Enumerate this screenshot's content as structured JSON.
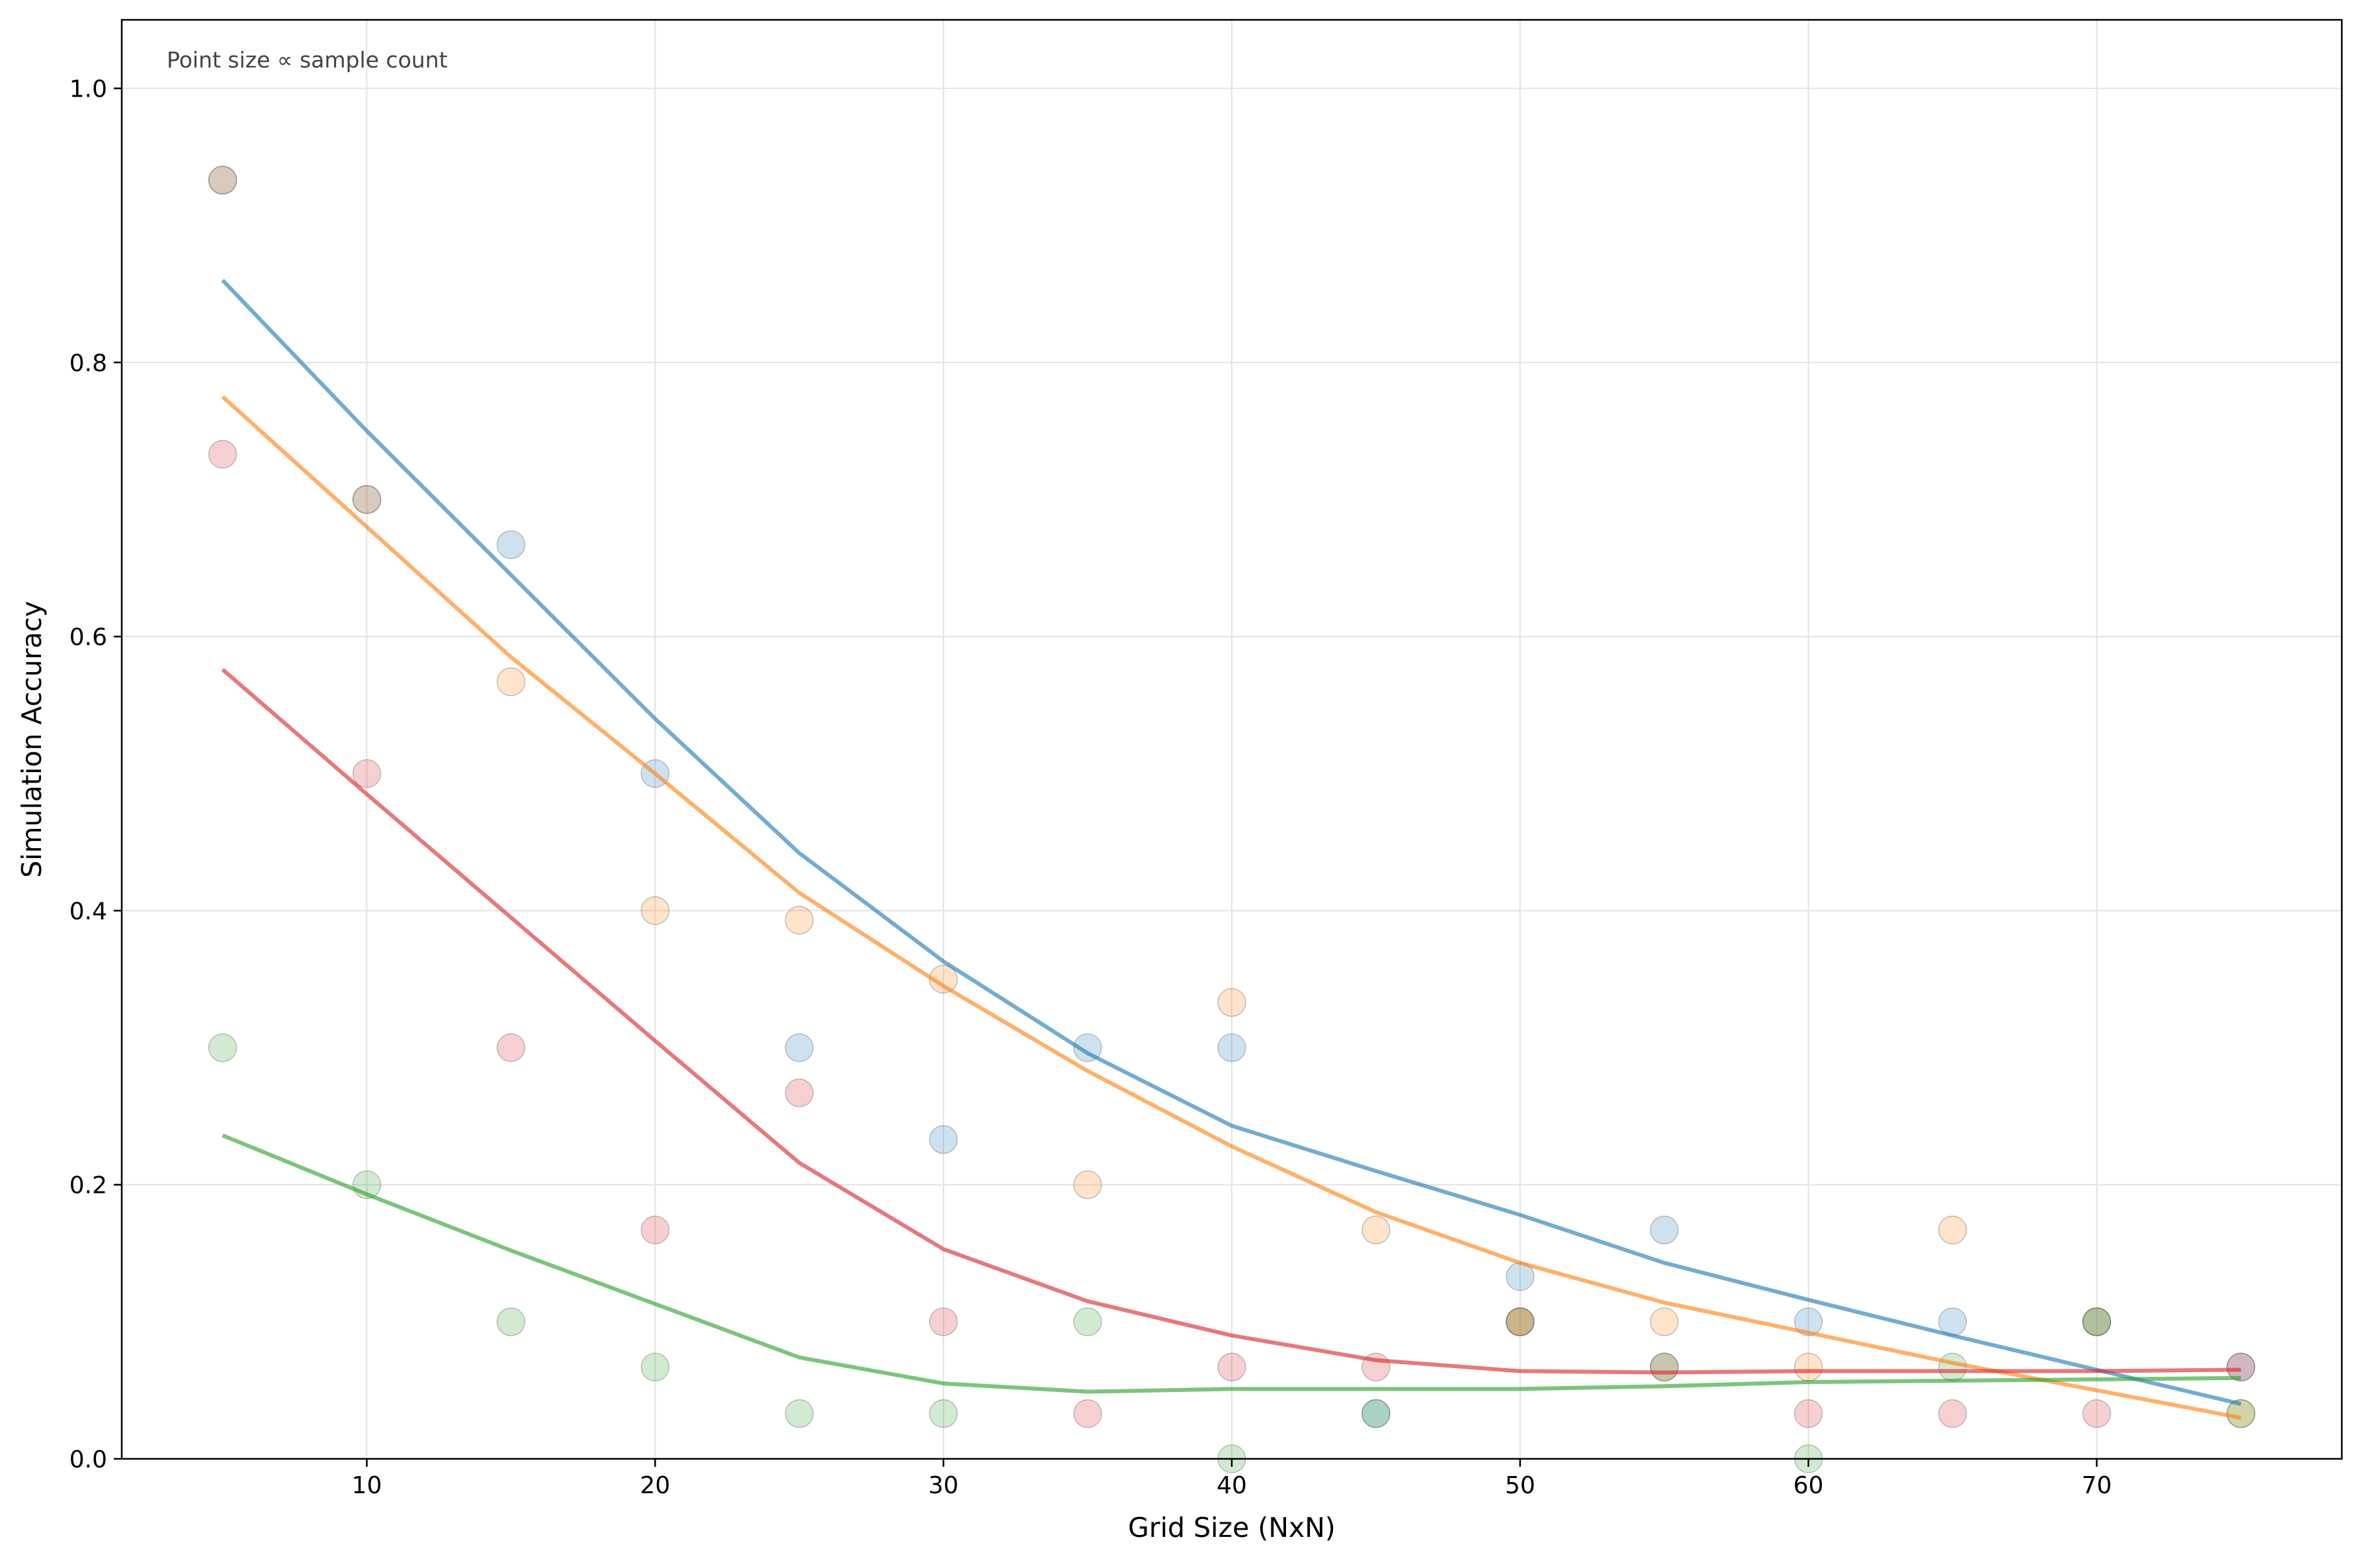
{
  "chart_data": {
    "type": "scatter",
    "title": "",
    "xlabel": "Grid Size (NxN)",
    "ylabel": "Simulation Accuracy",
    "annotation": "Point size ∝ sample count",
    "xlim": [
      1.5,
      78.5
    ],
    "ylim": [
      0.0,
      1.05
    ],
    "x_ticks": [
      10,
      20,
      30,
      40,
      50,
      60,
      70
    ],
    "y_ticks": [
      0.0,
      0.2,
      0.4,
      0.6,
      0.8,
      1.0
    ],
    "x_tick_labels": [
      "10",
      "20",
      "30",
      "40",
      "50",
      "60",
      "70"
    ],
    "y_tick_labels": [
      "0.0",
      "0.2",
      "0.4",
      "0.6",
      "0.8",
      "1.0"
    ],
    "grid": true,
    "series": [
      {
        "color": "#1f77b4",
        "points_x": [
          5,
          10,
          15,
          20,
          25,
          30,
          35,
          40,
          45,
          50,
          55,
          60,
          65,
          70,
          75
        ],
        "points_y": [
          0.933,
          0.7,
          0.667,
          0.5,
          0.3,
          0.233,
          0.3,
          0.3,
          0.033,
          0.133,
          0.167,
          0.1,
          0.1,
          0.1,
          0.067
        ],
        "trend_x": [
          5,
          10,
          15,
          20,
          25,
          30,
          35,
          40,
          45,
          50,
          55,
          60,
          65,
          70,
          75
        ],
        "trend_y": [
          0.86,
          0.75,
          0.645,
          0.54,
          0.442,
          0.363,
          0.296,
          0.243,
          0.21,
          0.178,
          0.143,
          0.116,
          0.09,
          0.065,
          0.04
        ]
      },
      {
        "color": "#ff7f0e",
        "points_x": [
          5,
          10,
          15,
          20,
          25,
          30,
          35,
          40,
          45,
          50,
          55,
          60,
          65,
          70,
          75
        ],
        "points_y": [
          0.933,
          0.7,
          0.567,
          0.4,
          0.393,
          0.35,
          0.2,
          0.333,
          0.167,
          0.1,
          0.1,
          0.067,
          0.167,
          0.1,
          0.033
        ],
        "trend_x": [
          5,
          10,
          15,
          20,
          25,
          30,
          35,
          40,
          45,
          50,
          55,
          60,
          65,
          70,
          75
        ],
        "trend_y": [
          0.775,
          0.68,
          0.585,
          0.5,
          0.413,
          0.345,
          0.283,
          0.228,
          0.18,
          0.143,
          0.114,
          0.092,
          0.07,
          0.05,
          0.03
        ]
      },
      {
        "color": "#d62728",
        "points_x": [
          5,
          10,
          15,
          20,
          25,
          30,
          35,
          40,
          45,
          50,
          55,
          60,
          65,
          70,
          75
        ],
        "points_y": [
          0.733,
          0.5,
          0.3,
          0.167,
          0.267,
          0.1,
          0.033,
          0.067,
          0.067,
          0.1,
          0.067,
          0.033,
          0.033,
          0.033,
          0.067
        ],
        "trend_x": [
          5,
          10,
          15,
          20,
          25,
          30,
          35,
          40,
          45,
          50,
          55,
          60,
          65,
          70,
          75
        ],
        "trend_y": [
          0.576,
          0.485,
          0.395,
          0.305,
          0.216,
          0.153,
          0.115,
          0.09,
          0.072,
          0.064,
          0.063,
          0.064,
          0.064,
          0.064,
          0.065
        ]
      },
      {
        "color": "#2ca02c",
        "points_x": [
          5,
          10,
          15,
          20,
          25,
          30,
          35,
          40,
          45,
          50,
          55,
          60,
          65,
          70,
          75
        ],
        "points_y": [
          0.3,
          0.2,
          0.1,
          0.067,
          0.033,
          0.033,
          0.1,
          0.0,
          0.033,
          0.1,
          0.067,
          0.0,
          0.067,
          0.1,
          0.033
        ],
        "trend_x": [
          5,
          10,
          15,
          20,
          25,
          30,
          35,
          40,
          45,
          50,
          55,
          60,
          65,
          70,
          75
        ],
        "trend_y": [
          0.236,
          0.193,
          0.152,
          0.113,
          0.074,
          0.055,
          0.049,
          0.051,
          0.051,
          0.051,
          0.053,
          0.056,
          0.057,
          0.058,
          0.059
        ]
      }
    ]
  }
}
